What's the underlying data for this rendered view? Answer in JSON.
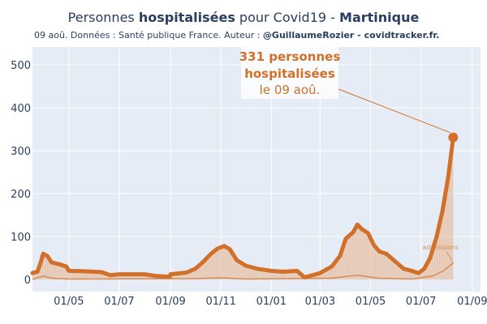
{
  "header": {
    "title_prefix": "Personnes ",
    "title_bold": "hospitalisées",
    "title_mid": " pour Covid19 - ",
    "title_region": "Martinique",
    "subtitle_prefix": "09 aoû. Données : Santé publique France. Auteur : ",
    "subtitle_bold": "@GuillaumeRozier - covidtracker.fr."
  },
  "annotation": {
    "line1": "331 personnes",
    "line2": "hospitalisées",
    "line3": "le 09 aoû."
  },
  "admissions_label": "admissions",
  "colors": {
    "main": "#d0702a",
    "fill": "#e9c0a0",
    "plot_bg": "#e5ecf6",
    "grid": "#ffffff"
  },
  "chart_data": {
    "type": "line",
    "xaxis_ticks": [
      "01/05",
      "01/07",
      "01/09",
      "01/11",
      "01/01",
      "01/03",
      "01/05",
      "01/07",
      "01/09"
    ],
    "yaxis_ticks": [
      0,
      100,
      200,
      300,
      400,
      500
    ],
    "ylim": [
      0,
      550
    ],
    "xlim": [
      "2020-03-18",
      "2021-09-11"
    ],
    "grid": true,
    "series": [
      {
        "kind": "hospitalized",
        "points": [
          [
            "2020-03-18",
            15
          ],
          [
            "2020-03-24",
            18
          ],
          [
            "2020-03-28",
            40
          ],
          [
            "2020-03-31",
            60
          ],
          [
            "2020-04-05",
            55
          ],
          [
            "2020-04-10",
            40
          ],
          [
            "2020-04-20",
            35
          ],
          [
            "2020-04-28",
            30
          ],
          [
            "2020-05-01",
            20
          ],
          [
            "2020-05-20",
            19
          ],
          [
            "2020-06-10",
            17
          ],
          [
            "2020-06-20",
            10
          ],
          [
            "2020-07-01",
            12
          ],
          [
            "2020-08-01",
            12
          ],
          [
            "2020-08-15",
            8
          ],
          [
            "2020-08-31",
            6
          ],
          [
            "2020-09-01",
            12
          ],
          [
            "2020-09-20",
            16
          ],
          [
            "2020-10-01",
            25
          ],
          [
            "2020-10-10",
            40
          ],
          [
            "2020-10-20",
            60
          ],
          [
            "2020-10-28",
            72
          ],
          [
            "2020-11-05",
            78
          ],
          [
            "2020-11-12",
            70
          ],
          [
            "2020-11-20",
            45
          ],
          [
            "2020-12-01",
            32
          ],
          [
            "2020-12-15",
            25
          ],
          [
            "2021-01-01",
            20
          ],
          [
            "2021-01-15",
            18
          ],
          [
            "2021-02-01",
            20
          ],
          [
            "2021-02-10",
            5
          ],
          [
            "2021-02-20",
            10
          ],
          [
            "2021-03-01",
            15
          ],
          [
            "2021-03-15",
            30
          ],
          [
            "2021-03-25",
            55
          ],
          [
            "2021-04-01",
            95
          ],
          [
            "2021-04-10",
            110
          ],
          [
            "2021-04-15",
            128
          ],
          [
            "2021-04-20",
            118
          ],
          [
            "2021-04-28",
            108
          ],
          [
            "2021-05-05",
            80
          ],
          [
            "2021-05-12",
            65
          ],
          [
            "2021-05-20",
            60
          ],
          [
            "2021-06-01",
            40
          ],
          [
            "2021-06-10",
            25
          ],
          [
            "2021-06-20",
            20
          ],
          [
            "2021-06-28",
            15
          ],
          [
            "2021-07-05",
            25
          ],
          [
            "2021-07-12",
            50
          ],
          [
            "2021-07-20",
            100
          ],
          [
            "2021-07-27",
            160
          ],
          [
            "2021-08-03",
            240
          ],
          [
            "2021-08-09",
            331
          ]
        ]
      },
      {
        "kind": "admissions",
        "points": [
          [
            "2020-03-18",
            0
          ],
          [
            "2020-03-31",
            8
          ],
          [
            "2020-04-10",
            3
          ],
          [
            "2020-05-01",
            1
          ],
          [
            "2020-10-01",
            2
          ],
          [
            "2020-11-01",
            4
          ],
          [
            "2020-12-01",
            1
          ],
          [
            "2021-03-15",
            3
          ],
          [
            "2021-04-15",
            10
          ],
          [
            "2021-05-10",
            3
          ],
          [
            "2021-06-20",
            1
          ],
          [
            "2021-07-15",
            8
          ],
          [
            "2021-07-28",
            20
          ],
          [
            "2021-08-09",
            38
          ]
        ]
      }
    ]
  }
}
